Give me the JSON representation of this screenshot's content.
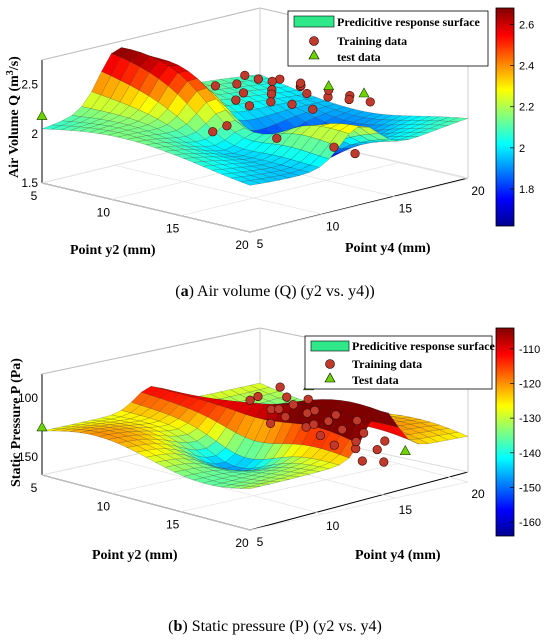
{
  "chart_data": [
    {
      "type": "scatter",
      "surface": "predictive response surface (3D)",
      "caption_letter": "a",
      "caption_text": "Air volume (Q) (y2 vs. y4))",
      "zlabel": "Air Volume Q (m³/s)",
      "zlabel_main": "Air Volume Q (m",
      "zlabel_sup": "3",
      "zlabel_tail": "/s)",
      "xlabel": "Point y2 (mm)",
      "ylabel": "Point y4 (mm)",
      "x_ticks": [
        "5",
        "10",
        "15",
        "20"
      ],
      "y_ticks": [
        "5",
        "10",
        "15",
        "20"
      ],
      "z_ticks": [
        "1.5",
        "2",
        "2.5"
      ],
      "zlim": [
        1.5,
        2.75
      ],
      "colorbar_ticks": [
        "2.6",
        "2.4",
        "2.2",
        "2",
        "1.8"
      ],
      "colorbar_range": [
        1.62,
        2.68
      ],
      "legend": [
        "Predicitive response surface",
        "Training data",
        "test data"
      ],
      "legend_position": "top-right",
      "colormap": "jet",
      "training_color": "#c0392b",
      "test_color": "#6dd400",
      "surface_color": "#2ee88a",
      "training_points": [
        {
          "y2": 10.5,
          "y4": 11.5,
          "q": 1.97
        },
        {
          "y2": 11.0,
          "y4": 12.0,
          "q": 2.03
        },
        {
          "y2": 12.5,
          "y4": 14.0,
          "q": 1.88
        },
        {
          "y2": 14.0,
          "y4": 16.5,
          "q": 1.75
        },
        {
          "y2": 8.0,
          "y4": 16.0,
          "q": 2.12
        },
        {
          "y2": 9.0,
          "y4": 17.0,
          "q": 2.15
        },
        {
          "y2": 10.0,
          "y4": 18.0,
          "q": 2.18
        },
        {
          "y2": 8.5,
          "y4": 15.0,
          "q": 2.1
        },
        {
          "y2": 9.5,
          "y4": 16.5,
          "q": 2.14
        },
        {
          "y2": 10.5,
          "y4": 15.5,
          "q": 2.13
        },
        {
          "y2": 11.0,
          "y4": 17.5,
          "q": 2.16
        },
        {
          "y2": 7.5,
          "y4": 17.5,
          "q": 2.19
        },
        {
          "y2": 8.0,
          "y4": 18.5,
          "q": 2.17
        },
        {
          "y2": 9.0,
          "y4": 19.0,
          "q": 2.12
        },
        {
          "y2": 12.0,
          "y4": 18.0,
          "q": 2.14
        },
        {
          "y2": 10.0,
          "y4": 14.5,
          "q": 2.11
        },
        {
          "y2": 11.5,
          "y4": 16.0,
          "q": 2.12
        },
        {
          "y2": 7.0,
          "y4": 16.5,
          "q": 2.16
        },
        {
          "y2": 8.5,
          "y4": 17.5,
          "q": 2.2
        },
        {
          "y2": 9.5,
          "y4": 18.5,
          "q": 2.18
        },
        {
          "y2": 12.0,
          "y4": 19.5,
          "q": 2.1
        },
        {
          "y2": 13.0,
          "y4": 18.5,
          "q": 2.13
        },
        {
          "y2": 6.5,
          "y4": 15.5,
          "q": 2.16
        },
        {
          "y2": 6.0,
          "y4": 18.0,
          "q": 2.16
        },
        {
          "y2": 11.0,
          "y4": 19.0,
          "q": 2.14
        },
        {
          "y2": 13.0,
          "y4": 16.0,
          "q": 2.12
        },
        {
          "y2": 14.0,
          "y4": 19.0,
          "q": 2.12
        },
        {
          "y2": 15.0,
          "y4": 17.0,
          "q": 1.7
        }
      ],
      "test_points": [
        {
          "y2": 5.0,
          "y4": 5.0,
          "q": 2.18
        },
        {
          "y2": 11.0,
          "y4": 19.0,
          "q": 2.18
        },
        {
          "y2": 12.5,
          "y4": 20.0,
          "q": 2.12
        }
      ]
    },
    {
      "type": "scatter",
      "surface": "predictive response surface (3D)",
      "caption_letter": "b",
      "caption_text": "Static pressure (P) (y2 vs. y4)",
      "zlabel": "Static Pressure P (Pa)",
      "xlabel": "Point y2 (mm)",
      "ylabel": "Point y4 (mm)",
      "x_ticks": [
        "5",
        "10",
        "15",
        "20"
      ],
      "y_ticks": [
        "5",
        "10",
        "15",
        "20"
      ],
      "z_ticks": [
        "-100",
        "-150"
      ],
      "zlim": [
        -165,
        -80
      ],
      "colorbar_ticks": [
        "-110",
        "-120",
        "-130",
        "-140",
        "-150",
        "-160"
      ],
      "colorbar_range": [
        -164,
        -104
      ],
      "legend": [
        "Predicitive response surface",
        "Training data",
        "Test data"
      ],
      "legend_position": "top-right",
      "colormap": "jet",
      "training_color": "#c0392b",
      "test_color": "#6dd400",
      "surface_color": "#2ee88a",
      "training_points": [
        {
          "y2": 9.0,
          "y4": 15.5,
          "p": -118
        },
        {
          "y2": 10.0,
          "y4": 16.0,
          "p": -124
        },
        {
          "y2": 11.0,
          "y4": 15.0,
          "p": -130
        },
        {
          "y2": 12.0,
          "y4": 16.5,
          "p": -134
        },
        {
          "y2": 9.5,
          "y4": 17.0,
          "p": -128
        },
        {
          "y2": 10.5,
          "y4": 18.0,
          "p": -131
        },
        {
          "y2": 11.5,
          "y4": 17.5,
          "p": -136
        },
        {
          "y2": 12.5,
          "y4": 18.5,
          "p": -140
        },
        {
          "y2": 13.5,
          "y4": 17.0,
          "p": -146
        },
        {
          "y2": 14.0,
          "y4": 18.0,
          "p": -150
        },
        {
          "y2": 8.5,
          "y4": 18.5,
          "p": -125
        },
        {
          "y2": 9.0,
          "y4": 19.5,
          "p": -128
        },
        {
          "y2": 10.0,
          "y4": 19.0,
          "p": -133
        },
        {
          "y2": 11.0,
          "y4": 19.5,
          "p": -135
        },
        {
          "y2": 12.0,
          "y4": 20.0,
          "p": -138
        },
        {
          "y2": 13.0,
          "y4": 19.5,
          "p": -144
        },
        {
          "y2": 14.5,
          "y4": 19.0,
          "p": -152
        },
        {
          "y2": 15.0,
          "y4": 17.5,
          "p": -156
        },
        {
          "y2": 10.5,
          "y4": 16.5,
          "p": -130
        },
        {
          "y2": 11.5,
          "y4": 18.5,
          "p": -136
        },
        {
          "y2": 8.0,
          "y4": 17.0,
          "p": -122
        },
        {
          "y2": 12.5,
          "y4": 17.0,
          "p": -141
        },
        {
          "y2": 13.5,
          "y4": 18.5,
          "p": -147
        },
        {
          "y2": 9.5,
          "y4": 18.0,
          "p": -127
        },
        {
          "y2": 14.0,
          "y4": 20.0,
          "p": -149
        },
        {
          "y2": 7.5,
          "y4": 19.0,
          "p": -121
        },
        {
          "y2": 15.5,
          "y4": 18.5,
          "p": -158
        }
      ],
      "test_points": [
        {
          "y2": 5.0,
          "y4": 5.0,
          "p": -125
        },
        {
          "y2": 16.0,
          "y4": 19.5,
          "p": -150
        },
        {
          "y2": 8.5,
          "y4": 20.0,
          "p": -120
        }
      ]
    }
  ]
}
